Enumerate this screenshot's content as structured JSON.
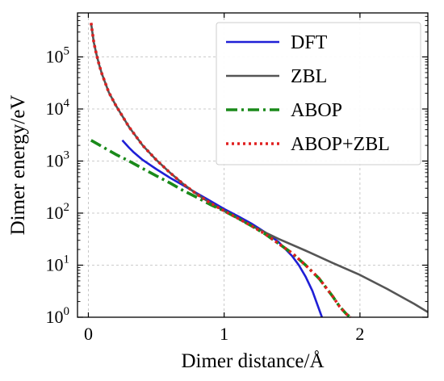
{
  "chart_data": {
    "type": "line",
    "xlabel": "Dimer distance/Å",
    "ylabel": "Dimer energy/eV",
    "xlim": [
      -0.08,
      2.5
    ],
    "ylim": [
      1,
      700000
    ],
    "y_scale": "log",
    "grid": true,
    "legend_position": "top-right",
    "x_ticks": [
      {
        "value": 0,
        "label": "0"
      },
      {
        "value": 1,
        "label": "1"
      },
      {
        "value": 2,
        "label": "2"
      }
    ],
    "y_ticks": [
      {
        "value": 1,
        "base": "10",
        "exp": "0"
      },
      {
        "value": 10,
        "base": "10",
        "exp": "1"
      },
      {
        "value": 100,
        "base": "10",
        "exp": "2"
      },
      {
        "value": 1000,
        "base": "10",
        "exp": "3"
      },
      {
        "value": 10000,
        "base": "10",
        "exp": "4"
      },
      {
        "value": 100000,
        "base": "10",
        "exp": "5"
      }
    ],
    "series": [
      {
        "name": "DFT",
        "color": "#1f1fd6",
        "style": "solid",
        "x": [
          0.25,
          0.3,
          0.33,
          0.4,
          0.5,
          0.6,
          0.7,
          0.8,
          0.9,
          1.0,
          1.1,
          1.2,
          1.3,
          1.4,
          1.5,
          1.55,
          1.6,
          1.65,
          1.7,
          1.72
        ],
        "y": [
          2500,
          1800,
          1500,
          1050,
          700,
          480,
          340,
          240,
          170,
          120,
          88,
          63,
          43,
          28,
          15,
          10,
          6,
          3.2,
          1.4,
          1.0
        ]
      },
      {
        "name": "ZBL",
        "color": "#555555",
        "style": "solid",
        "x": [
          0.02,
          0.04,
          0.06,
          0.08,
          0.1,
          0.15,
          0.2,
          0.3,
          0.4,
          0.5,
          0.6,
          0.7,
          0.8,
          0.9,
          1.0,
          1.2,
          1.4,
          1.6,
          1.8,
          2.0,
          2.2,
          2.4,
          2.5
        ],
        "y": [
          450000,
          190000,
          110000,
          70000,
          47000,
          21000,
          12000,
          4500,
          2000,
          1050,
          600,
          360,
          230,
          155,
          110,
          57,
          32,
          19,
          11,
          6.5,
          3.5,
          1.8,
          1.25
        ]
      },
      {
        "name": "ABOP",
        "color": "#1a8a1a",
        "style": "dashdot",
        "x": [
          0.02,
          0.1,
          0.2,
          0.3,
          0.4,
          0.5,
          0.6,
          0.7,
          0.8,
          0.9,
          1.0,
          1.1,
          1.2,
          1.3,
          1.4,
          1.5,
          1.6,
          1.7,
          1.8,
          1.85,
          1.9,
          1.93
        ],
        "y": [
          2500,
          1900,
          1350,
          1000,
          720,
          520,
          380,
          270,
          200,
          145,
          110,
          80,
          57,
          40,
          26,
          17,
          10,
          5.5,
          2.5,
          1.6,
          1.15,
          1.0
        ]
      },
      {
        "name": "ABOP+ZBL",
        "color": "#e02020",
        "style": "dotted",
        "x": [
          0.02,
          0.04,
          0.06,
          0.08,
          0.1,
          0.15,
          0.2,
          0.3,
          0.4,
          0.5,
          0.6,
          0.7,
          0.8,
          0.9,
          1.0,
          1.1,
          1.2,
          1.3,
          1.4,
          1.5,
          1.6,
          1.7,
          1.8,
          1.85,
          1.9,
          1.93
        ],
        "y": [
          450000,
          190000,
          110000,
          70000,
          47000,
          21000,
          12000,
          4500,
          2000,
          1050,
          600,
          360,
          230,
          155,
          110,
          80,
          57,
          40,
          26,
          17,
          10,
          5.5,
          2.5,
          1.6,
          1.15,
          1.0
        ]
      }
    ]
  }
}
